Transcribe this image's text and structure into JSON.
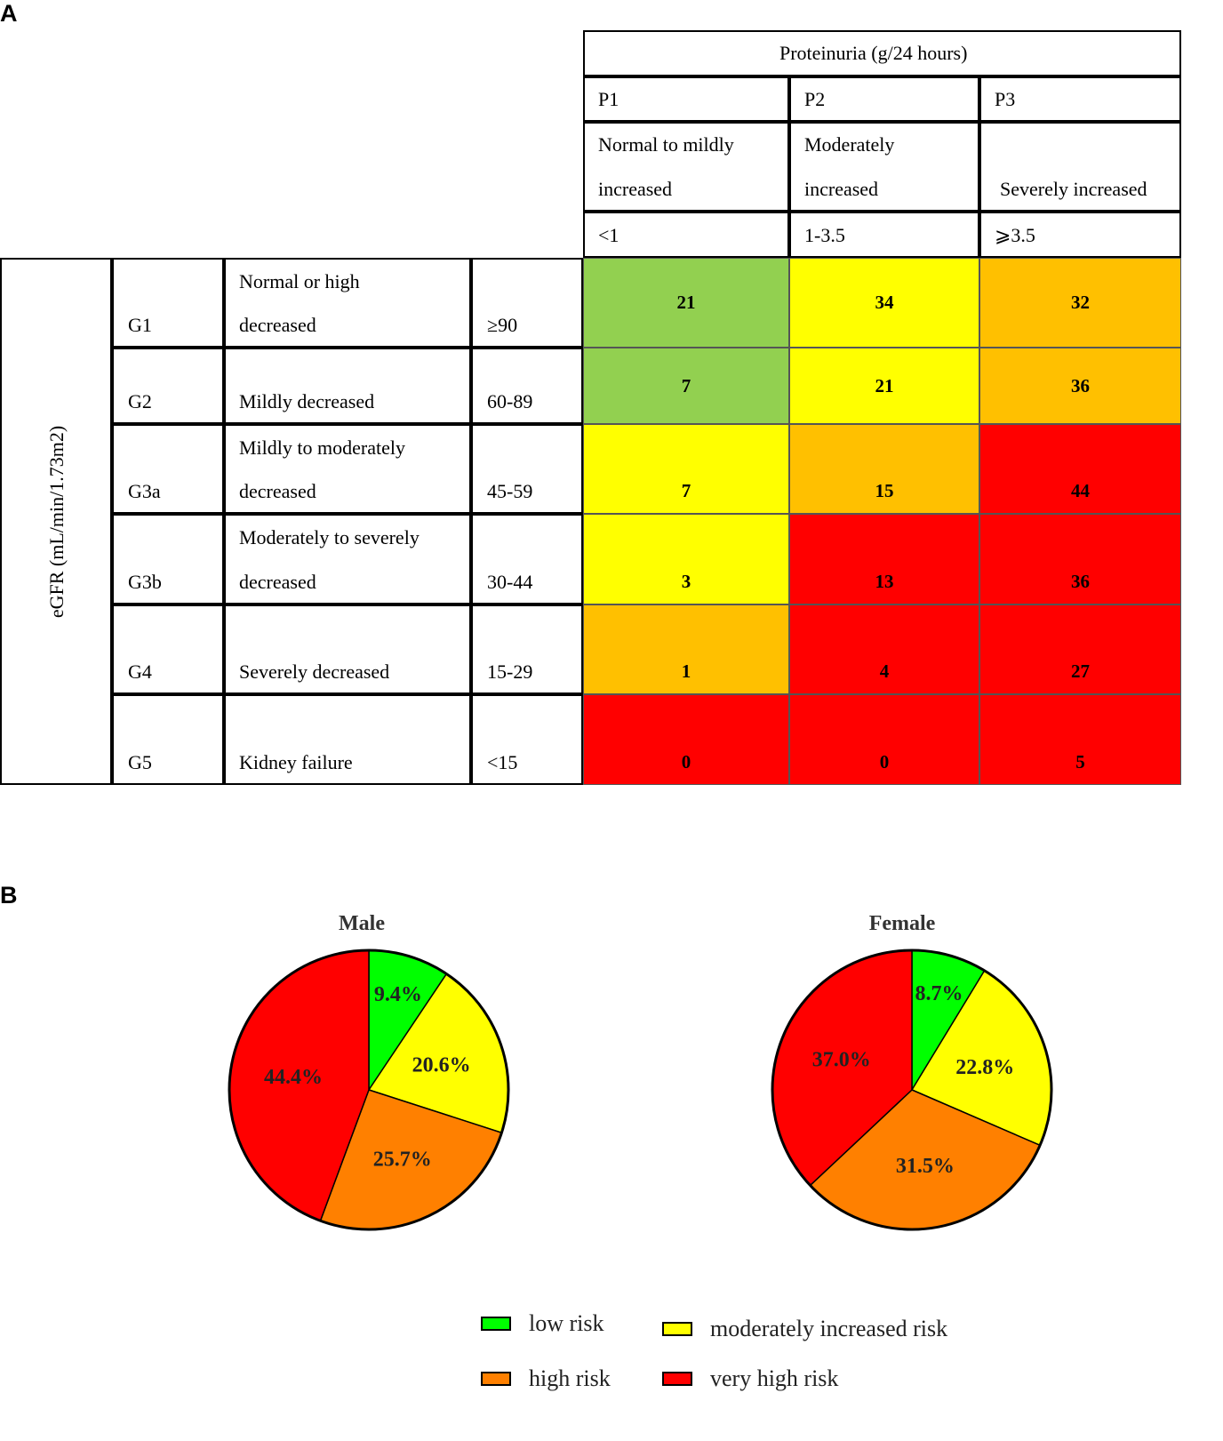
{
  "panel_a_label": "A",
  "panel_b_label": "B",
  "colors": {
    "green": "#92d050",
    "yellow": "#ffff00",
    "orange": "#ffc000",
    "red": "#ff0000",
    "pie_green": "#00ff00",
    "pie_yellow": "#ffff00",
    "pie_orange": "#ff8000",
    "pie_red": "#ff0000"
  },
  "table": {
    "proteinuria_header": "Proteinuria (g/24 hours)",
    "egfr_axis_label": "eGFR (mL/min/1.73m2)",
    "columns": [
      {
        "code": "P1",
        "desc_line1": "Normal to mildly",
        "desc_line2": "increased",
        "range": "<1"
      },
      {
        "code": "P2",
        "desc_line1": "Moderately",
        "desc_line2": "increased",
        "range": "1-3.5"
      },
      {
        "code": "P3",
        "desc_line1": "",
        "desc_line2": "Severely increased",
        "range": "⩾3.5"
      }
    ],
    "rows": [
      {
        "grade": "G1",
        "desc_line1": "Normal or high",
        "desc_line2": "decreased",
        "range": "≥90",
        "values": [
          "21",
          "34",
          "32"
        ],
        "risk": [
          "green",
          "yellow",
          "orange"
        ]
      },
      {
        "grade": "G2",
        "desc_line1": "",
        "desc_line2": "Mildly decreased",
        "range": "60-89",
        "values": [
          "7",
          "21",
          "36"
        ],
        "risk": [
          "green",
          "yellow",
          "orange"
        ]
      },
      {
        "grade": "G3a",
        "desc_line1": "Mildly to moderately",
        "desc_line2": "decreased",
        "range": "45-59",
        "values": [
          "7",
          "15",
          "44"
        ],
        "risk": [
          "yellow",
          "orange",
          "red"
        ]
      },
      {
        "grade": "G3b",
        "desc_line1": "Moderately to severely",
        "desc_line2": "decreased",
        "range": "30-44",
        "values": [
          "3",
          "13",
          "36"
        ],
        "risk": [
          "yellow",
          "red",
          "red"
        ]
      },
      {
        "grade": "G4",
        "desc_line1": "",
        "desc_line2": "Severely decreased",
        "range": "15-29",
        "values": [
          "1",
          "4",
          "27"
        ],
        "risk": [
          "orange",
          "red",
          "red"
        ]
      },
      {
        "grade": "G5",
        "desc_line1": "",
        "desc_line2": "Kidney failure",
        "range": "<15",
        "values": [
          "0",
          "0",
          "5"
        ],
        "risk": [
          "red",
          "red",
          "red"
        ]
      }
    ]
  },
  "chart_data": [
    {
      "type": "pie",
      "title": "Male",
      "categories": [
        "low risk",
        "moderately increased risk",
        "high risk",
        "very high risk"
      ],
      "values": [
        9.4,
        20.6,
        25.7,
        44.4
      ],
      "labels": [
        "9.4%",
        "20.6%",
        "25.7%",
        "44.4%"
      ]
    },
    {
      "type": "pie",
      "title": "Female",
      "categories": [
        "low risk",
        "moderately increased risk",
        "high risk",
        "very high risk"
      ],
      "values": [
        8.7,
        22.8,
        31.5,
        37.0
      ],
      "labels": [
        "8.7%",
        "22.8%",
        "31.5%",
        "37.0%"
      ]
    }
  ],
  "legend": [
    {
      "label": "low risk",
      "color": "#00ff00"
    },
    {
      "label": "moderately increased risk",
      "color": "#ffff00"
    },
    {
      "label": "high risk",
      "color": "#ff8000"
    },
    {
      "label": "very high risk",
      "color": "#ff0000"
    }
  ]
}
